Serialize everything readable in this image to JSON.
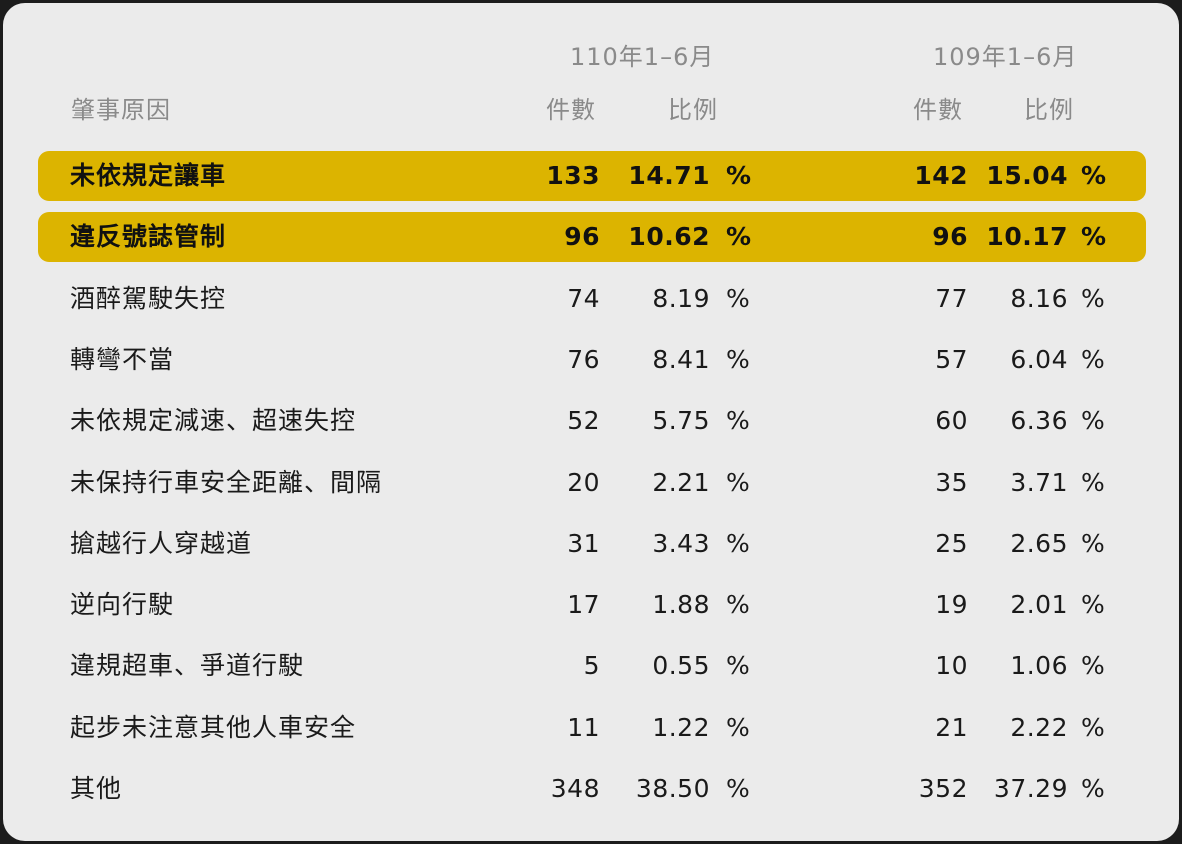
{
  "chart_data": {
    "type": "table",
    "header_groups": [
      "110年1–6月",
      "109年1–6月"
    ],
    "columns": {
      "reason": "肇事原因",
      "count": "件數",
      "ratio": "比例"
    },
    "percent_sign": "%",
    "rows": [
      {
        "reason": "未依規定讓車",
        "n110": "133",
        "p110": "14.71",
        "n109": "142",
        "p109": "15.04",
        "highlight": true
      },
      {
        "reason": "違反號誌管制",
        "n110": "96",
        "p110": "10.62",
        "n109": "96",
        "p109": "10.17",
        "highlight": true
      },
      {
        "reason": "酒醉駕駛失控",
        "n110": "74",
        "p110": "8.19",
        "n109": "77",
        "p109": "8.16",
        "highlight": false
      },
      {
        "reason": "轉彎不當",
        "n110": "76",
        "p110": "8.41",
        "n109": "57",
        "p109": "6.04",
        "highlight": false
      },
      {
        "reason": "未依規定減速、超速失控",
        "n110": "52",
        "p110": "5.75",
        "n109": "60",
        "p109": "6.36",
        "highlight": false
      },
      {
        "reason": "未保持行車安全距離、間隔",
        "n110": "20",
        "p110": "2.21",
        "n109": "35",
        "p109": "3.71",
        "highlight": false
      },
      {
        "reason": "搶越行人穿越道",
        "n110": "31",
        "p110": "3.43",
        "n109": "25",
        "p109": "2.65",
        "highlight": false
      },
      {
        "reason": "逆向行駛",
        "n110": "17",
        "p110": "1.88",
        "n109": "19",
        "p109": "2.01",
        "highlight": false
      },
      {
        "reason": "違規超車、爭道行駛",
        "n110": "5",
        "p110": "0.55",
        "n109": "10",
        "p109": "1.06",
        "highlight": false
      },
      {
        "reason": "起步未注意其他人車安全",
        "n110": "11",
        "p110": "1.22",
        "n109": "21",
        "p109": "2.22",
        "highlight": false
      },
      {
        "reason": "其他",
        "n110": "348",
        "p110": "38.50",
        "n109": "352",
        "p109": "37.29",
        "highlight": false
      }
    ],
    "highlight_color": "#dcb400"
  }
}
